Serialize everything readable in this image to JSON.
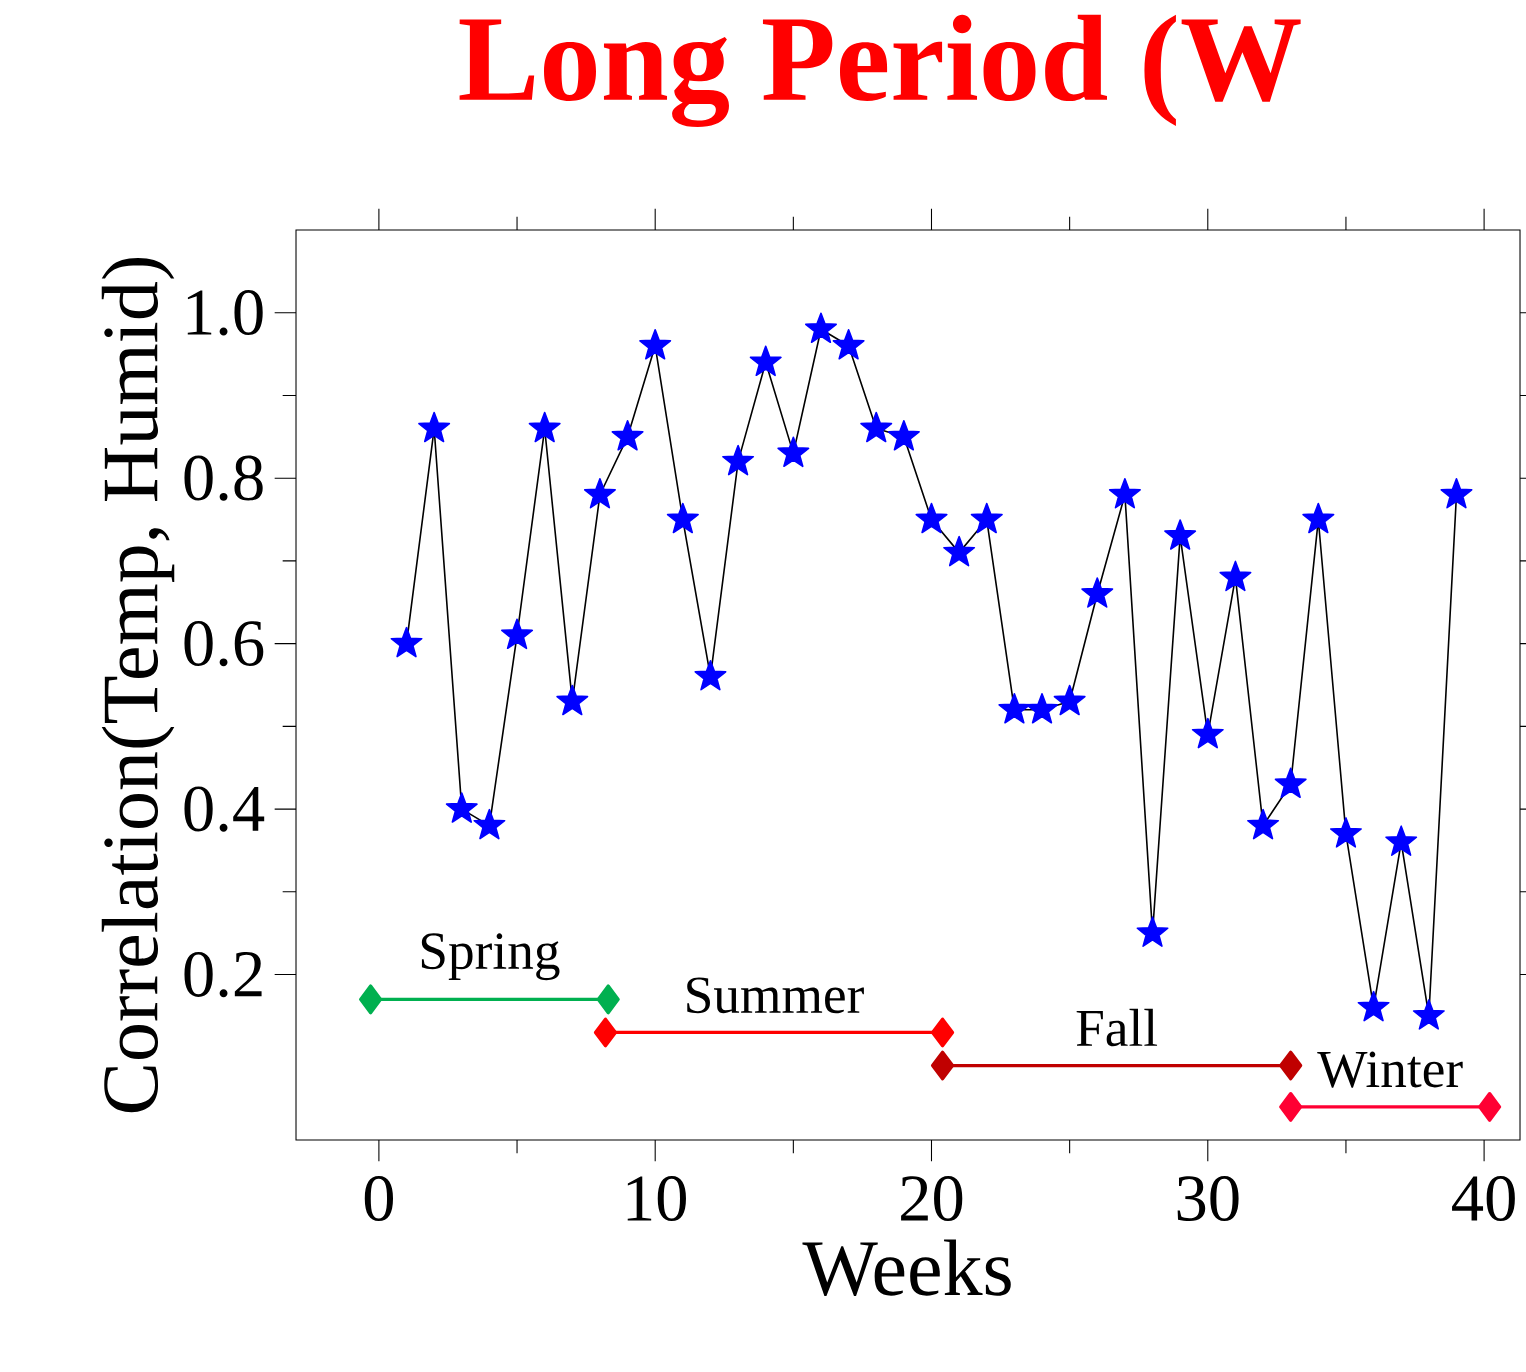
{
  "chart_data": {
    "type": "line",
    "title": "Long Period (W",
    "xlabel": "Weeks",
    "ylabel": "Correlation(Temp, Humid)",
    "xlim": [
      -3,
      41.3
    ],
    "ylim": [
      0,
      1.1
    ],
    "xticks": [
      0,
      10,
      20,
      30,
      40
    ],
    "yticks": [
      0.2,
      0.4,
      0.6,
      0.8,
      {
        "value": 1.0,
        "label": "1.0"
      }
    ],
    "line_style": "solid",
    "series": [
      {
        "color": "#0000ff",
        "marker": "star",
        "x": [
          1,
          2,
          3,
          4,
          5,
          6,
          7,
          8,
          9,
          10,
          11,
          12,
          13,
          14,
          15,
          16,
          17,
          18,
          19,
          20,
          21,
          22,
          23,
          24,
          25,
          26,
          27,
          28,
          29,
          30,
          31,
          32,
          33,
          34,
          35,
          36,
          37,
          38,
          39
        ],
        "values": [
          0.6,
          0.86,
          0.4,
          0.38,
          0.61,
          0.86,
          0.53,
          0.78,
          0.85,
          0.96,
          0.75,
          0.56,
          0.82,
          0.94,
          0.83,
          0.98,
          0.96,
          0.86,
          0.85,
          0.75,
          0.71,
          0.75,
          0.52,
          0.52,
          0.53,
          0.66,
          0.78,
          0.25,
          0.73,
          0.49,
          0.68,
          0.38,
          0.43,
          0.75,
          0.37,
          0.16,
          0.36,
          0.15,
          0.78
        ]
      },
      {
        "name": "Spring",
        "color": "#00b050",
        "marker": "diamond",
        "x": [
          -0.3,
          8.3
        ],
        "values": [
          0.17,
          0.17
        ]
      },
      {
        "name": "Summer",
        "color": "#ff0000",
        "marker": "diamond",
        "x": [
          8.2,
          20.4
        ],
        "values": [
          0.13,
          0.13
        ]
      },
      {
        "name": "Fall",
        "color": "#c00000",
        "marker": "diamond",
        "x": [
          20.4,
          33.0
        ],
        "values": [
          0.09,
          0.09
        ]
      },
      {
        "name": "Winter",
        "color": "#ff0033",
        "marker": "diamond",
        "x": [
          33.0,
          40.2
        ],
        "values": [
          0.04,
          0.04
        ]
      }
    ]
  }
}
